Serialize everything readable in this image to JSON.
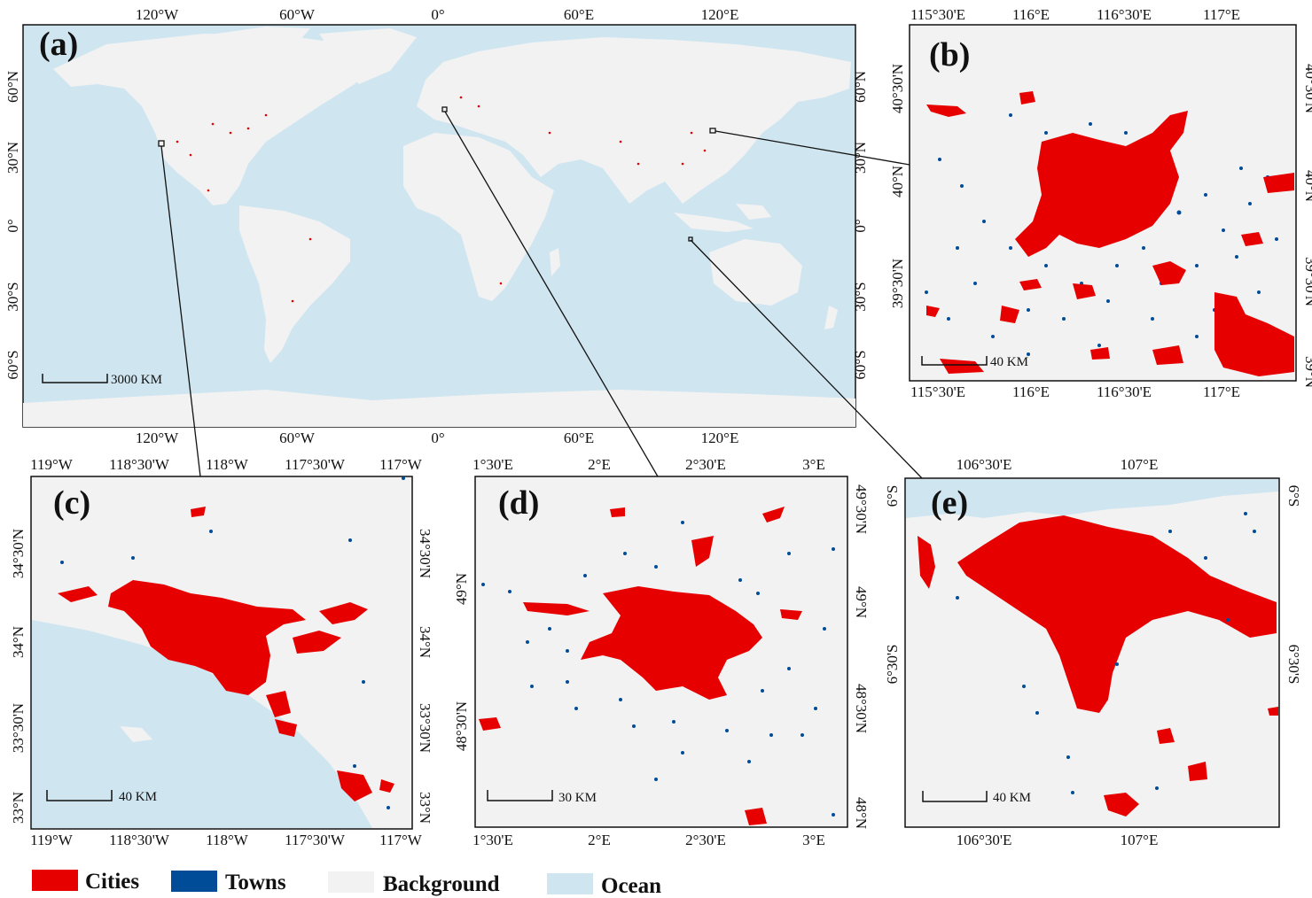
{
  "colors": {
    "cities": "#e60000",
    "towns": "#004c99",
    "background": "#f2f2f2",
    "ocean": "#cfe5f0"
  },
  "panel_a": {
    "letter": "(a)",
    "top_ticks": [
      "120°W",
      "60°W",
      "0°",
      "60°E",
      "120°E"
    ],
    "bottom_ticks": [
      "120°W",
      "60°W",
      "0°",
      "60°E",
      "120°E"
    ],
    "left_ticks": [
      "60°N",
      "30°N",
      "0°",
      "30°S",
      "60°S"
    ],
    "right_ticks": [
      "60°N",
      "30°N",
      "0°",
      "30°S",
      "60°S"
    ],
    "scale": "3000 KM"
  },
  "panel_b": {
    "letter": "(b)",
    "top_ticks": [
      "115°30'E",
      "116°E",
      "116°30'E",
      "117°E"
    ],
    "bottom_ticks": [
      "115°30'E",
      "116°E",
      "116°30'E",
      "117°E"
    ],
    "left_ticks": [
      "40°30'N",
      "40°N",
      "39°30'N"
    ],
    "right_ticks": [
      "40°30'N",
      "40°N",
      "39°30'N",
      "39°N"
    ],
    "scale": "40 KM"
  },
  "panel_c": {
    "letter": "(c)",
    "top_ticks": [
      "119°W",
      "118°30'W",
      "118°W",
      "117°30'W",
      "117°W"
    ],
    "bottom_ticks": [
      "119°W",
      "118°30'W",
      "118°W",
      "117°30'W",
      "117°W"
    ],
    "left_ticks": [
      "34°30'N",
      "34°N",
      "33°30'N",
      "33°N"
    ],
    "right_ticks": [
      "34°30'N",
      "34°N",
      "33°30'N",
      "33°N"
    ],
    "scale": "40 KM"
  },
  "panel_d": {
    "letter": "(d)",
    "top_ticks": [
      "1°30'E",
      "2°E",
      "2°30'E",
      "3°E"
    ],
    "bottom_ticks": [
      "1°30'E",
      "2°E",
      "2°30'E",
      "3°E"
    ],
    "left_ticks": [
      "49°N",
      "48°30'N"
    ],
    "right_ticks": [
      "49°30'N",
      "49°N",
      "48°30'N",
      "48°N"
    ],
    "scale": "30 KM"
  },
  "panel_e": {
    "letter": "(e)",
    "top_ticks": [
      "106°30'E",
      "107°E"
    ],
    "bottom_ticks": [
      "106°30'E",
      "107°E"
    ],
    "left_ticks": [
      "6°S",
      "6°30'S"
    ],
    "right_ticks": [
      "6°S",
      "6°30'S"
    ],
    "scale": "40 KM"
  },
  "legend": {
    "cities": "Cities",
    "towns": "Towns",
    "background": "Background",
    "ocean": "Ocean"
  }
}
